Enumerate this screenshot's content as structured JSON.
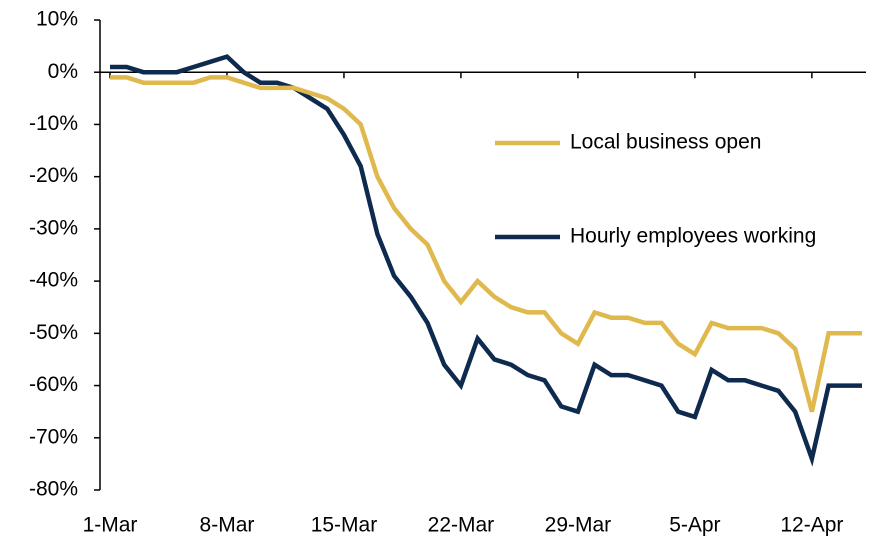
{
  "chart_data": {
    "type": "line",
    "categories": [
      "1-Mar",
      null,
      null,
      null,
      null,
      null,
      null,
      "8-Mar",
      null,
      null,
      null,
      null,
      null,
      null,
      "15-Mar",
      null,
      null,
      null,
      null,
      null,
      null,
      "22-Mar",
      null,
      null,
      null,
      null,
      null,
      null,
      "29-Mar",
      null,
      null,
      null,
      null,
      null,
      null,
      "5-Apr",
      null,
      null,
      null,
      null,
      null,
      null,
      "12-Apr",
      null,
      null,
      null
    ],
    "series": [
      {
        "name": "Local business open",
        "color": "#e0b94e",
        "values": [
          -1,
          -1,
          -2,
          -2,
          -2,
          -2,
          -1,
          -1,
          -2,
          -3,
          -3,
          -3,
          -4,
          -5,
          -7,
          -10,
          -20,
          -26,
          -30,
          -33,
          -40,
          -44,
          -40,
          -43,
          -45,
          -46,
          -46,
          -50,
          -52,
          -46,
          -47,
          -47,
          -48,
          -48,
          -52,
          -54,
          -48,
          -49,
          -49,
          -49,
          -50,
          -53,
          -65,
          -50,
          -50,
          -50
        ]
      },
      {
        "name": "Hourly employees working",
        "color": "#0e2a4f",
        "values": [
          1,
          1,
          0,
          0,
          0,
          1,
          2,
          3,
          0,
          -2,
          -2,
          -3,
          -5,
          -7,
          -12,
          -18,
          -31,
          -39,
          -43,
          -48,
          -56,
          -60,
          -51,
          -55,
          -56,
          -58,
          -59,
          -64,
          -65,
          -56,
          -58,
          -58,
          -59,
          -60,
          -65,
          -66,
          -57,
          -59,
          -59,
          -60,
          -61,
          -65,
          -74,
          -60,
          -60,
          -60
        ]
      }
    ],
    "ylim": [
      -80,
      10
    ],
    "yticks": [
      {
        "value": -80,
        "label": "-80%"
      },
      {
        "value": -70,
        "label": "-70%"
      },
      {
        "value": -60,
        "label": "-60%"
      },
      {
        "value": -50,
        "label": "-50%"
      },
      {
        "value": -40,
        "label": "-40%"
      },
      {
        "value": -30,
        "label": "-30%"
      },
      {
        "value": -20,
        "label": "-20%"
      },
      {
        "value": -10,
        "label": "-10%"
      },
      {
        "value": 0,
        "label": "0%"
      },
      {
        "value": 10,
        "label": "10%"
      }
    ]
  }
}
